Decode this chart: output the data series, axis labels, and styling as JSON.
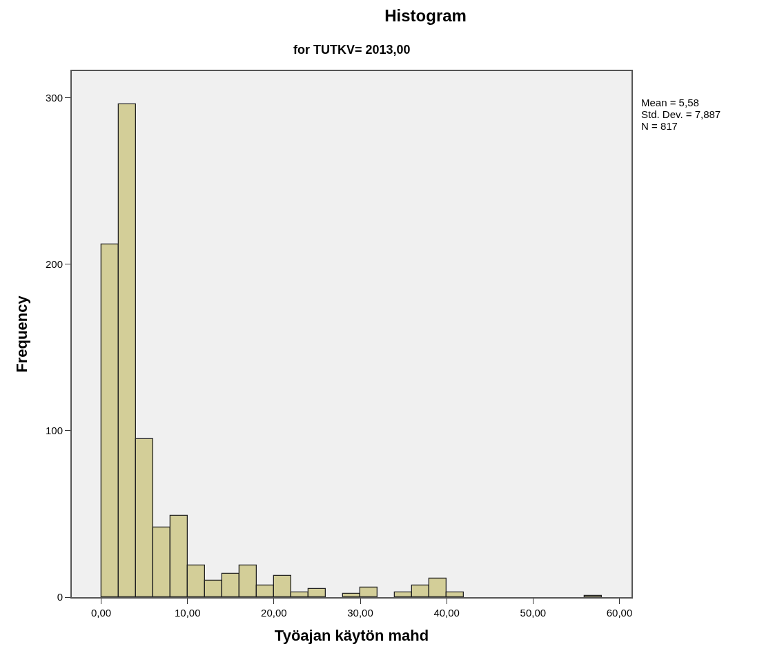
{
  "chart_data": {
    "type": "histogram",
    "title": "Histogram",
    "subtitle": "for TUTKV= 2013,00",
    "xlabel": "Työajan käytön mahd",
    "ylabel": "Frequency",
    "bins": [
      0,
      2,
      4,
      6,
      8,
      10,
      12,
      14,
      16,
      18,
      20,
      22,
      24,
      26,
      28,
      30,
      32,
      34,
      36,
      38,
      40,
      42,
      44,
      46,
      48,
      50,
      52,
      54,
      56,
      58
    ],
    "values": [
      212,
      296,
      95,
      42,
      49,
      19,
      10,
      14,
      19,
      7,
      13,
      3,
      5,
      0,
      2,
      6,
      0,
      3,
      7,
      11,
      3,
      0,
      0,
      0,
      0,
      0,
      0,
      0,
      1
    ],
    "color": "#d3ce98",
    "xlim": [
      -3.4,
      61.4
    ],
    "xticks": [
      {
        "value": 0,
        "label": "0,00"
      },
      {
        "value": 10,
        "label": "10,00"
      },
      {
        "value": 20,
        "label": "20,00"
      },
      {
        "value": 30,
        "label": "30,00"
      },
      {
        "value": 40,
        "label": "40,00"
      },
      {
        "value": 50,
        "label": "50,00"
      },
      {
        "value": 60,
        "label": "60,00"
      }
    ],
    "ylim": [
      0,
      316
    ],
    "yticks": [
      0,
      100,
      200,
      300
    ],
    "grid": false,
    "annotations": [
      "Mean = 5,58",
      "Std. Dev. = 7,887",
      "N = 817"
    ]
  }
}
